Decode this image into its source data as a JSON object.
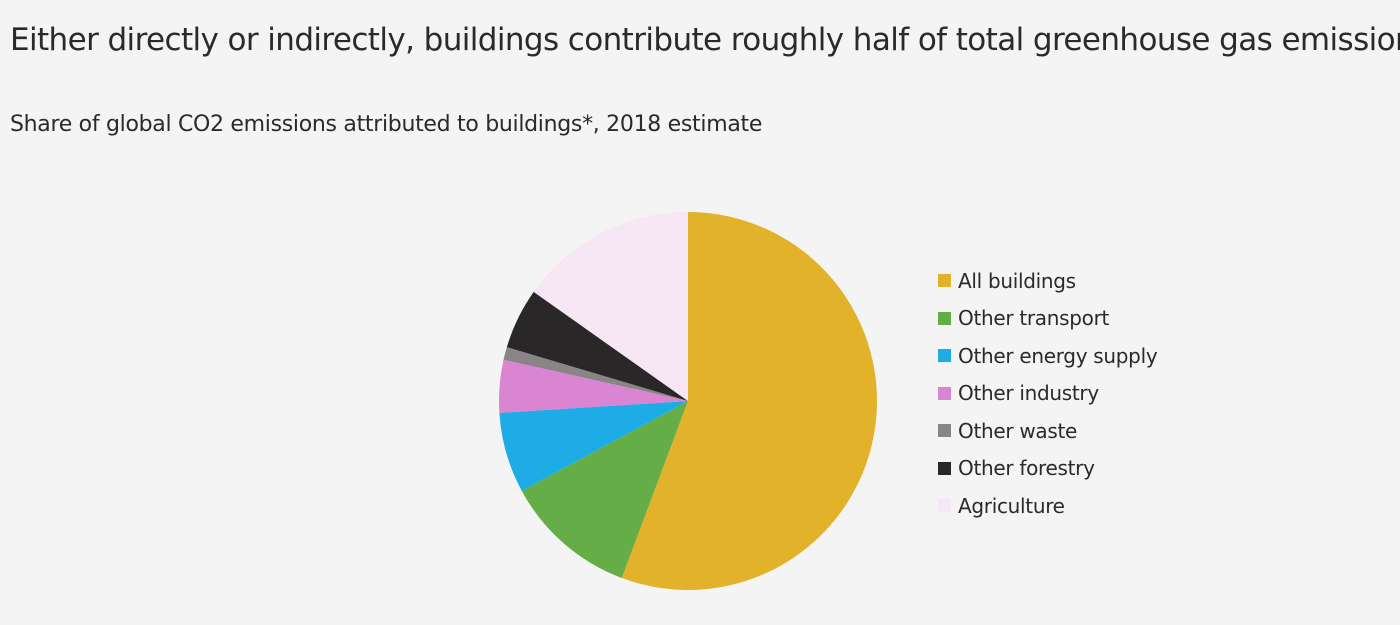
{
  "chart_data": {
    "type": "pie",
    "title": "Either directly or indirectly, buildings contribute roughly half of total greenhouse gas emissions",
    "subtitle": "Share of global CO2 emissions attributed to buildings*, 2018 estimate",
    "legend_position": "right",
    "start": "top, clockwise",
    "slices": [
      {
        "label": "All buildings",
        "value": 55.7,
        "color": "#e2b22b"
      },
      {
        "label": "Other transport",
        "value": 11.4,
        "color": "#65ad46"
      },
      {
        "label": "Other energy supply",
        "value": 6.9,
        "color": "#1eace6"
      },
      {
        "label": "Other industry",
        "value": 4.5,
        "color": "#d985d2"
      },
      {
        "label": "Other waste",
        "value": 1.1,
        "color": "#8b8487"
      },
      {
        "label": "Other forestry",
        "value": 5.2,
        "color": "#2a2728"
      },
      {
        "label": "Agriculture",
        "value": 15.2,
        "color": "#f7e6f4"
      }
    ]
  }
}
